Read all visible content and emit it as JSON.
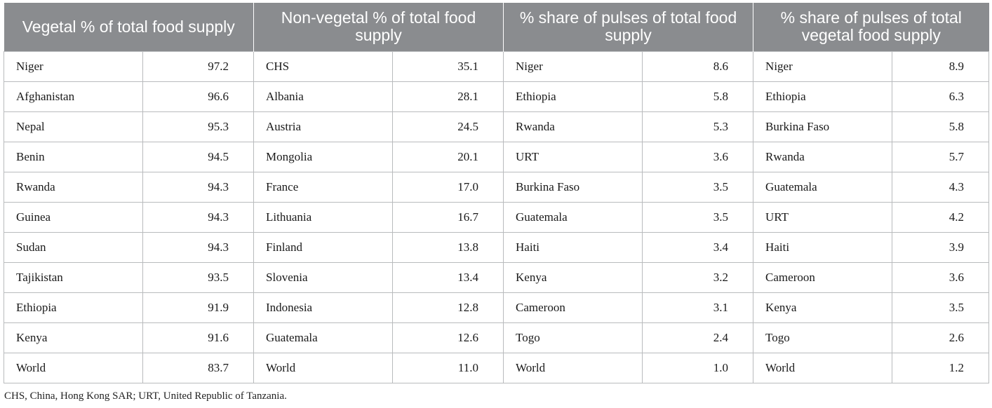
{
  "table": {
    "headers": [
      "Vegetal % of total food supply",
      "Non-vegetal % of total food supply",
      "% share of pulses of total food supply",
      "% share of pulses of total vegetal food supply"
    ],
    "rows": [
      [
        [
          "Niger",
          "97.2"
        ],
        [
          "CHS",
          "35.1"
        ],
        [
          "Niger",
          "8.6"
        ],
        [
          "Niger",
          "8.9"
        ]
      ],
      [
        [
          "Afghanistan",
          "96.6"
        ],
        [
          "Albania",
          "28.1"
        ],
        [
          "Ethiopia",
          "5.8"
        ],
        [
          "Ethiopia",
          "6.3"
        ]
      ],
      [
        [
          "Nepal",
          "95.3"
        ],
        [
          "Austria",
          "24.5"
        ],
        [
          "Rwanda",
          "5.3"
        ],
        [
          "Burkina Faso",
          "5.8"
        ]
      ],
      [
        [
          "Benin",
          "94.5"
        ],
        [
          "Mongolia",
          "20.1"
        ],
        [
          "URT",
          "3.6"
        ],
        [
          "Rwanda",
          "5.7"
        ]
      ],
      [
        [
          "Rwanda",
          "94.3"
        ],
        [
          "France",
          "17.0"
        ],
        [
          "Burkina Faso",
          "3.5"
        ],
        [
          "Guatemala",
          "4.3"
        ]
      ],
      [
        [
          "Guinea",
          "94.3"
        ],
        [
          "Lithuania",
          "16.7"
        ],
        [
          "Guatemala",
          "3.5"
        ],
        [
          "URT",
          "4.2"
        ]
      ],
      [
        [
          "Sudan",
          "94.3"
        ],
        [
          "Finland",
          "13.8"
        ],
        [
          "Haiti",
          "3.4"
        ],
        [
          "Haiti",
          "3.9"
        ]
      ],
      [
        [
          "Tajikistan",
          "93.5"
        ],
        [
          "Slovenia",
          "13.4"
        ],
        [
          "Kenya",
          "3.2"
        ],
        [
          "Cameroon",
          "3.6"
        ]
      ],
      [
        [
          "Ethiopia",
          "91.9"
        ],
        [
          "Indonesia",
          "12.8"
        ],
        [
          "Cameroon",
          "3.1"
        ],
        [
          "Kenya",
          "3.5"
        ]
      ],
      [
        [
          "Kenya",
          "91.6"
        ],
        [
          "Guatemala",
          "12.6"
        ],
        [
          "Togo",
          "2.4"
        ],
        [
          "Togo",
          "2.6"
        ]
      ],
      [
        [
          "World",
          "83.7"
        ],
        [
          "World",
          "11.0"
        ],
        [
          "World",
          "1.0"
        ],
        [
          "World",
          "1.2"
        ]
      ]
    ]
  },
  "footnote": "CHS, China, Hong Kong SAR; URT, United Republic of Tanzania.",
  "colors": {
    "header_background": "#8a8c8f",
    "header_text": "#ffffff",
    "grid_lines": "#b9bbbd"
  }
}
